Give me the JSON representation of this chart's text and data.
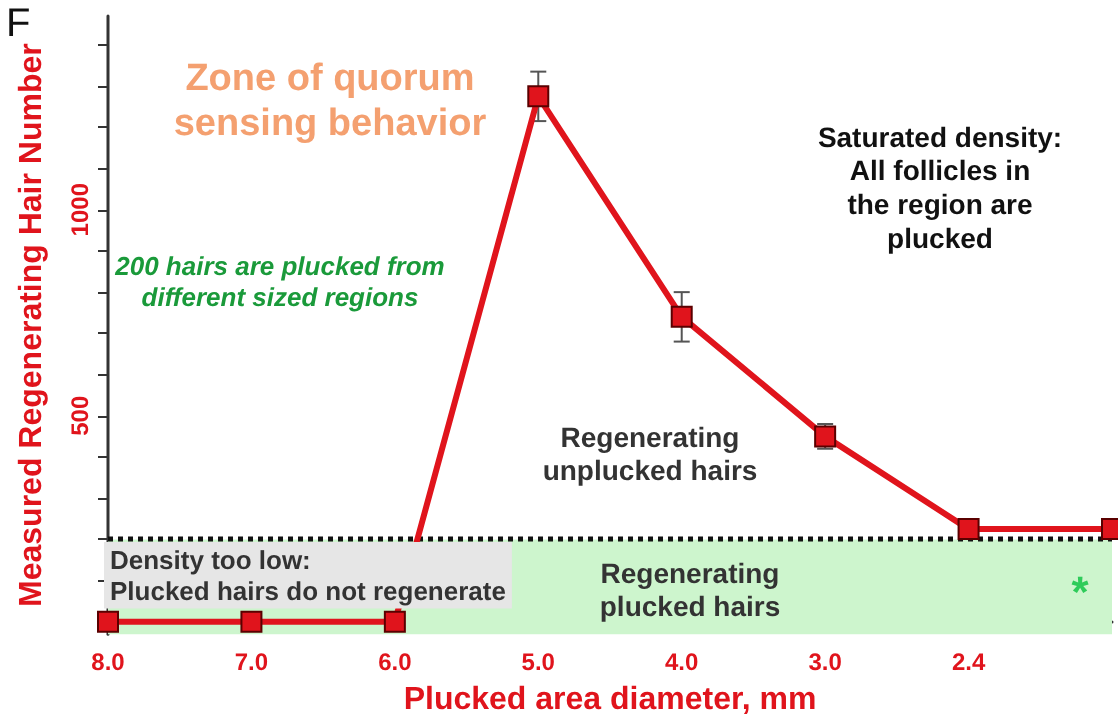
{
  "chart_data": {
    "type": "line",
    "xlabel": "Plucked area diameter, mm",
    "ylabel": "Measured Regenerating Hair Number",
    "categories": [
      "8.0",
      "7.0",
      "6.0",
      "5.0",
      "4.0",
      "3.0",
      "2.4",
      null
    ],
    "series": [
      {
        "color": "#e0141c",
        "values": [
          0,
          0,
          0,
          1275,
          740,
          450,
          225,
          225
        ],
        "errors": [
          null,
          null,
          null,
          60,
          60,
          30,
          null,
          null
        ]
      }
    ],
    "marker": "square",
    "line_style": "solid",
    "ylim": [
      -30,
      1470
    ],
    "yticks": [
      {
        "value": 100,
        "label": null
      },
      {
        "value": 200,
        "label": null
      },
      {
        "value": 300,
        "label": null
      },
      {
        "value": 400,
        "label": null
      },
      500,
      {
        "value": 600,
        "label": null
      },
      {
        "value": 700,
        "label": null
      },
      {
        "value": 800,
        "label": null
      },
      {
        "value": 900,
        "label": null
      },
      1000,
      {
        "value": 1100,
        "label": null
      },
      {
        "value": 1200,
        "label": null
      },
      {
        "value": 1300,
        "label": null
      },
      {
        "value": 1400,
        "label": null
      }
    ],
    "ref_lines": [
      {
        "axis": "y",
        "value": 200,
        "color": "#111111",
        "line_style": "dotted"
      }
    ],
    "bands": [
      {
        "axis": "y",
        "from": -30,
        "to": 200,
        "color": "#cdf5cd"
      }
    ],
    "grid": false,
    "annotations": [
      "F",
      "Zone of quorum\nsensing behavior",
      "200 hairs are plucked from\ndifferent sized regions",
      "Saturated density:\nAll follicles in\nthe region are\nplucked",
      "Regenerating\nunplucked hairs",
      "Density too low:\nPlucked hairs do not regenerate",
      "Regenerating\nplucked hairs",
      "*"
    ]
  }
}
